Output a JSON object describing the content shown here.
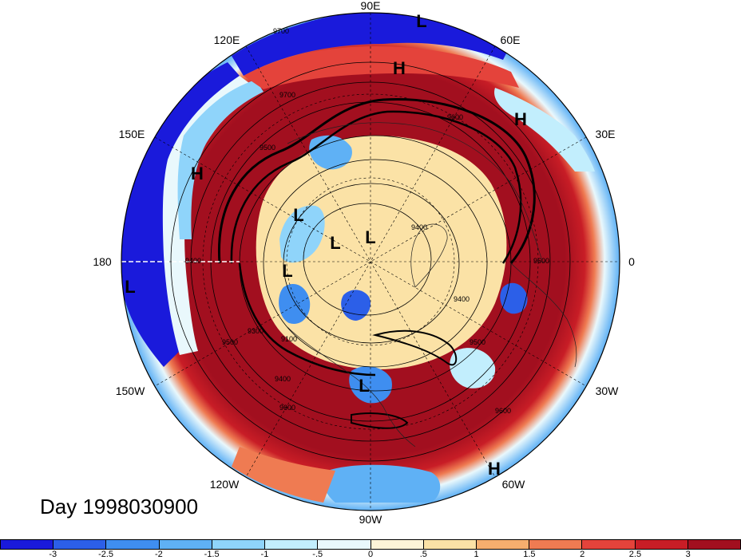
{
  "map": {
    "projection": "north polar stereographic",
    "fill_colors_note": "Field shaded: anomaly (red = positive, blue = negative)",
    "longitude_labels": {
      "lon_90e": "90E",
      "lon_60e": "60E",
      "lon_120e": "120E",
      "lon_30e": "30E",
      "lon_150e": "150E",
      "lon_0": "0",
      "lon_180": "180",
      "lon_30w": "30W",
      "lon_150w": "150W",
      "lon_60w": "60W",
      "lon_120w": "120W",
      "lon_90w": "90W"
    },
    "pressure_centers": [
      {
        "id": "l-top",
        "label": "L"
      },
      {
        "id": "h-top",
        "label": "H"
      },
      {
        "id": "h-ne",
        "label": "H"
      },
      {
        "id": "h-nw",
        "label": "H"
      },
      {
        "id": "l-left",
        "label": "L"
      },
      {
        "id": "l-c1",
        "label": "L"
      },
      {
        "id": "l-c2",
        "label": "L"
      },
      {
        "id": "l-c3",
        "label": "L"
      },
      {
        "id": "l-c4",
        "label": "L"
      },
      {
        "id": "l-s",
        "label": "L"
      },
      {
        "id": "h-se",
        "label": "H"
      }
    ],
    "contour_labels": [
      "9700",
      "9700",
      "9600",
      "9500",
      "9400",
      "9300",
      "9100",
      "9400",
      "9600",
      "9500",
      "9400",
      "9600",
      "9600",
      "9500",
      "9400"
    ]
  },
  "title": {
    "day": "Day 1998030900"
  },
  "colorbar": {
    "colors": [
      "#1a1adb",
      "#2c5fe8",
      "#3f8ef0",
      "#5fb1f5",
      "#8fd4fa",
      "#c2eefd",
      "#e9f8fc",
      "#fdf4d8",
      "#fbe2a6",
      "#f6ae6e",
      "#ef7b52",
      "#e4433b",
      "#c81d26",
      "#a20f1f"
    ],
    "ticks": [
      "-3",
      "-2.5",
      "-2",
      "-1.5",
      "-1",
      "-.5",
      "0",
      ".5",
      "1",
      "1.5",
      "2",
      "2.5",
      "3"
    ]
  }
}
